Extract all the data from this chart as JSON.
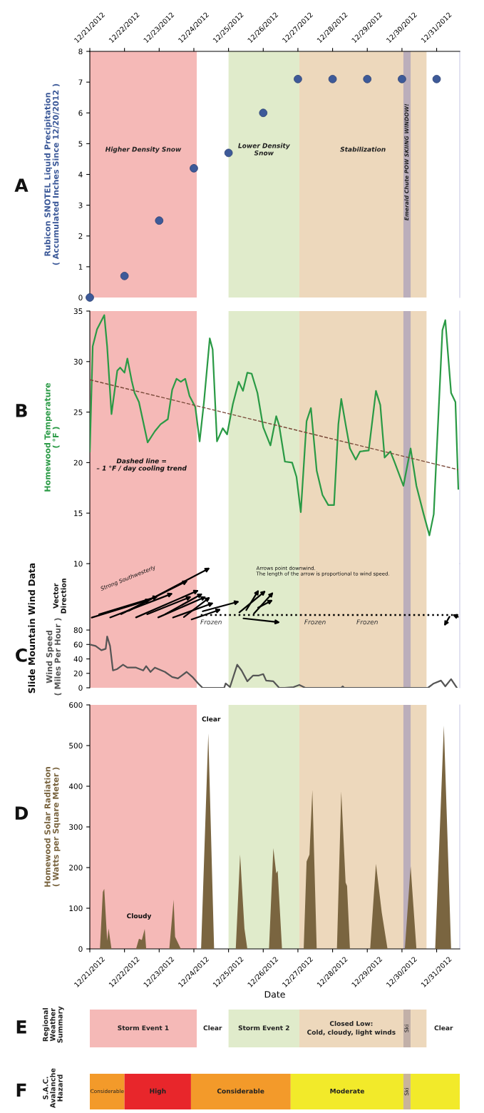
{
  "chart_data": [
    {
      "type": "scatter",
      "ylabel": "Rubicon SNOTEL Liquid Precipitation\n( Accumulated Inches Since 12/20/2012 )",
      "x": [
        "2012-12-21T00:00",
        "2012-12-22T00:00",
        "2012-12-23T00:00",
        "2012-12-24T00:00",
        "2012-12-25T00:00",
        "2012-12-26T00:00",
        "2012-12-27T00:00",
        "2012-12-28T00:00",
        "2012-12-29T00:00",
        "2012-12-30T00:00",
        "2012-12-31T00:00"
      ],
      "series": [
        {
          "color": "#3d5a99",
          "values": [
            0,
            0.7,
            2.5,
            4.2,
            4.7,
            6.0,
            7.1,
            7.1,
            7.1,
            7.1,
            7.1
          ]
        }
      ],
      "marker": "circle",
      "ylim": [
        0,
        8
      ],
      "yticks": [
        0,
        1,
        2,
        3,
        4,
        5,
        6,
        7,
        8
      ],
      "xlim": [
        "2012-12-21T00:00",
        "2012-12-31T16:00"
      ],
      "xticks": [
        {
          "value": "2012-12-21T00:00",
          "label": "12/21/2012"
        },
        {
          "value": "2012-12-22T00:00",
          "label": "12/22/2012"
        },
        {
          "value": "2012-12-23T00:00",
          "label": "12/23/2012"
        },
        {
          "value": "2012-12-24T00:00",
          "label": "12/24/2012"
        },
        {
          "value": "2012-12-25T00:00",
          "label": "12/25/2012"
        },
        {
          "value": "2012-12-26T00:00",
          "label": "12/26/2012"
        },
        {
          "value": "2012-12-27T00:00",
          "label": "12/27/2012"
        },
        {
          "value": "2012-12-28T00:00",
          "label": "12/28/2012"
        },
        {
          "value": "2012-12-29T00:00",
          "label": "12/29/2012"
        },
        {
          "value": "2012-12-30T00:00",
          "label": "12/30/2012"
        },
        {
          "value": "2012-12-31T00:00",
          "label": "12/31/2012"
        }
      ],
      "bands": [
        {
          "axis": "x",
          "from": "2012-12-21T00:00",
          "to": "2012-12-24T02:00",
          "color": "#f5b9b7",
          "label": "Higher Density Snow"
        },
        {
          "axis": "x",
          "from": "2012-12-25T00:00",
          "to": "2012-12-27T01:00",
          "color": "#e0ebcb",
          "label": "Lower Density\nSnow"
        },
        {
          "axis": "x",
          "from": "2012-12-27T01:00",
          "to": "2012-12-30T17:00",
          "color": "#edd8bc",
          "label": "Stabilization"
        },
        {
          "axis": "x",
          "from": "2012-12-30T01:00",
          "to": "2012-12-30T06:00",
          "color": "#bbaebb",
          "label": "Emerald Chute POW SKIING WINDOW!"
        }
      ],
      "annotations": [
        "A"
      ]
    },
    {
      "type": "line",
      "ylabel": "Homewood Temperature\n( °F )",
      "tick_labels": "y",
      "xlim": [
        "2012-12-21T00:00",
        "2012-12-31T16:00"
      ],
      "ylim": [
        10,
        35
      ],
      "yticks": [
        10,
        15,
        20,
        25,
        30,
        35
      ],
      "series": [
        {
          "color": "#2a9a45",
          "line_style": "solid",
          "x": [
            "2012-12-21T00:00",
            "2012-12-21T02:00",
            "2012-12-21T05:00",
            "2012-12-21T10:00",
            "2012-12-21T12:00",
            "2012-12-21T15:00",
            "2012-12-21T19:00",
            "2012-12-21T21:00",
            "2012-12-22T00:00",
            "2012-12-22T02:00",
            "2012-12-22T05:00",
            "2012-12-22T07:00",
            "2012-12-22T10:00",
            "2012-12-22T16:00",
            "2012-12-22T21:00",
            "2012-12-23T01:00",
            "2012-12-23T06:00",
            "2012-12-23T09:00",
            "2012-12-23T12:00",
            "2012-12-23T15:00",
            "2012-12-23T18:00",
            "2012-12-23T21:00",
            "2012-12-24T01:00",
            "2012-12-24T04:00",
            "2012-12-24T07:00",
            "2012-12-24T11:00",
            "2012-12-24T13:00",
            "2012-12-24T16:00",
            "2012-12-24T20:00",
            "2012-12-24T23:00",
            "2012-12-25T03:00",
            "2012-12-25T07:00",
            "2012-12-25T10:00",
            "2012-12-25T13:00",
            "2012-12-25T16:00",
            "2012-12-25T20:00",
            "2012-12-26T00:00",
            "2012-12-26T05:00",
            "2012-12-26T09:00",
            "2012-12-26T11:00",
            "2012-12-26T15:00",
            "2012-12-26T20:00",
            "2012-12-26T23:00",
            "2012-12-27T02:00",
            "2012-12-27T06:00",
            "2012-12-27T09:00",
            "2012-12-27T13:00",
            "2012-12-27T17:00",
            "2012-12-27T21:00",
            "2012-12-28T01:00",
            "2012-12-28T04:00",
            "2012-12-28T06:00",
            "2012-12-28T09:00",
            "2012-12-28T12:00",
            "2012-12-28T16:00",
            "2012-12-28T19:00",
            "2012-12-29T01:00",
            "2012-12-29T06:00",
            "2012-12-29T09:00",
            "2012-12-29T12:00",
            "2012-12-29T16:00",
            "2012-12-29T19:00",
            "2012-12-30T01:00",
            "2012-12-30T06:00",
            "2012-12-30T10:00",
            "2012-12-30T15:00",
            "2012-12-30T19:00",
            "2012-12-30T22:00",
            "2012-12-31T04:00",
            "2012-12-31T06:00",
            "2012-12-31T10:00",
            "2012-12-31T13:00",
            "2012-12-31T15:00"
          ],
          "values": [
            21.1,
            31.5,
            33.2,
            34.6,
            31.5,
            24.8,
            29.1,
            29.4,
            28.9,
            30.3,
            28.1,
            26.9,
            26.0,
            22.0,
            23.1,
            23.8,
            24.3,
            27.2,
            28.3,
            28.0,
            28.3,
            26.6,
            25.5,
            22.1,
            26.0,
            32.3,
            31.2,
            22.1,
            23.4,
            22.8,
            25.8,
            28.0,
            27.1,
            28.9,
            28.8,
            26.9,
            23.5,
            21.7,
            24.6,
            23.7,
            20.1,
            20.0,
            18.6,
            15.1,
            24.1,
            25.4,
            19.2,
            16.8,
            15.8,
            15.8,
            23.8,
            26.3,
            23.8,
            21.4,
            20.3,
            21.1,
            21.2,
            27.1,
            25.7,
            20.5,
            21.1,
            20.0,
            17.7,
            21.4,
            17.7,
            14.9,
            12.8,
            14.9,
            33.1,
            34.1,
            26.9,
            26.0,
            17.4
          ]
        },
        {
          "color": "#7a4a3a",
          "line_style": "dashed",
          "x": [
            "2012-12-21T00:00",
            "2012-12-31T15:00"
          ],
          "values": [
            28.2,
            19.3
          ]
        }
      ],
      "bands": [
        {
          "axis": "x",
          "from": "2012-12-21T00:00",
          "to": "2012-12-24T02:00",
          "color": "#f5b9b7"
        },
        {
          "axis": "x",
          "from": "2012-12-25T00:00",
          "to": "2012-12-27T01:00",
          "color": "#e0ebcb"
        },
        {
          "axis": "x",
          "from": "2012-12-27T01:00",
          "to": "2012-12-30T17:00",
          "color": "#edd8bc"
        },
        {
          "axis": "x",
          "from": "2012-12-30T01:00",
          "to": "2012-12-30T06:00",
          "color": "#bbaebb"
        }
      ],
      "annotations": [
        "B",
        "Dashed line =\n– 1 °F / day cooling trend"
      ]
    },
    {
      "type": "line",
      "ylabel": "Wind Speed\n( Miles Per Hour )",
      "tick_labels": "y",
      "xlim": [
        "2012-12-21T00:00",
        "2012-12-31T16:00"
      ],
      "ylim": [
        0,
        172
      ],
      "yticks": [
        0,
        20,
        40,
        60,
        80
      ],
      "series": [
        {
          "color": "#555555",
          "line_style": "solid",
          "x": [
            "2012-12-21T00:00",
            "2012-12-21T04:00",
            "2012-12-21T08:00",
            "2012-12-21T11:00",
            "2012-12-21T12:00",
            "2012-12-21T14:00",
            "2012-12-21T16:00",
            "2012-12-21T19:00",
            "2012-12-21T23:00",
            "2012-12-22T02:00",
            "2012-12-22T08:00",
            "2012-12-22T13:00",
            "2012-12-22T15:00",
            "2012-12-22T18:00",
            "2012-12-22T21:00",
            "2012-12-23T04:00",
            "2012-12-23T09:00",
            "2012-12-23T13:00",
            "2012-12-23T19:00",
            "2012-12-23T23:00",
            "2012-12-24T03:00",
            "2012-12-24T06:00",
            "2012-12-24T21:00",
            "2012-12-24T22:00",
            "2012-12-25T01:00",
            "2012-12-25T06:00",
            "2012-12-25T09:00",
            "2012-12-25T13:00",
            "2012-12-25T17:00",
            "2012-12-25T21:00",
            "2012-12-26T00:00",
            "2012-12-26T02:00",
            "2012-12-26T07:00",
            "2012-12-26T11:00",
            "2012-12-26T15:00",
            "2012-12-26T21:00",
            "2012-12-27T01:00",
            "2012-12-27T05:00",
            "2012-12-28T06:00",
            "2012-12-28T07:00",
            "2012-12-28T08:00",
            "2012-12-30T18:00",
            "2012-12-30T22:00",
            "2012-12-31T03:00",
            "2012-12-31T06:00",
            "2012-12-31T10:00",
            "2012-12-31T14:00"
          ],
          "values": [
            60,
            58,
            52,
            54,
            71,
            58,
            24,
            26,
            32,
            28,
            28,
            24,
            30,
            22,
            28,
            22,
            15,
            13,
            22,
            15,
            6,
            0,
            0,
            6,
            1,
            32,
            24,
            9,
            17,
            17,
            19,
            10,
            9,
            0,
            0,
            1,
            4,
            0,
            0,
            2,
            0,
            0,
            6,
            10,
            2,
            12,
            0
          ]
        }
      ],
      "bands": [
        {
          "axis": "x",
          "from": "2012-12-21T00:00",
          "to": "2012-12-24T02:00",
          "color": "#f5b9b7"
        },
        {
          "axis": "x",
          "from": "2012-12-25T00:00",
          "to": "2012-12-27T01:00",
          "color": "#e0ebcb"
        },
        {
          "axis": "x",
          "from": "2012-12-27T01:00",
          "to": "2012-12-30T17:00",
          "color": "#edd8bc"
        },
        {
          "axis": "x",
          "from": "2012-12-30T01:00",
          "to": "2012-12-30T06:00",
          "color": "#bbaebb"
        }
      ],
      "annotations": [
        "C",
        "Slide Mountain Wind Data",
        "Vector\nDirection",
        "Strong Southwesterly",
        "Arrows point downwind.\nThe length of the arrow is proportional to wind speed.",
        "Frozen",
        "Frozen",
        "Frozen"
      ]
    },
    {
      "type": "area",
      "ylabel": "Homewood Solar Radiation\n( Watts per Square Meter )",
      "xlabel": "Date",
      "xlim": [
        "2012-12-21T00:00",
        "2012-12-31T16:00"
      ],
      "ylim": [
        0,
        600
      ],
      "yticks": [
        0,
        100,
        200,
        300,
        400,
        500,
        600
      ],
      "xticks": [
        {
          "value": "2012-12-21T00:00",
          "label": "12/21/2012"
        },
        {
          "value": "2012-12-22T00:00",
          "label": "12/22/2012"
        },
        {
          "value": "2012-12-23T00:00",
          "label": "12/23/2012"
        },
        {
          "value": "2012-12-24T00:00",
          "label": "12/24/2012"
        },
        {
          "value": "2012-12-25T00:00",
          "label": "12/25/2012"
        },
        {
          "value": "2012-12-26T00:00",
          "label": "12/26/2012"
        },
        {
          "value": "2012-12-27T00:00",
          "label": "12/27/2012"
        },
        {
          "value": "2012-12-28T00:00",
          "label": "12/28/2012"
        },
        {
          "value": "2012-12-29T00:00",
          "label": "12/29/2012"
        },
        {
          "value": "2012-12-30T00:00",
          "label": "12/30/2012"
        },
        {
          "value": "2012-12-31T00:00",
          "label": "12/31/2012"
        }
      ],
      "series": [
        {
          "color": "#7a6540",
          "x": [
            "2012-12-21T07:00",
            "2012-12-21T09:00",
            "2012-12-21T10:00",
            "2012-12-21T12:00",
            "2012-12-21T13:00",
            "2012-12-21T15:00",
            "2012-12-22T08:00",
            "2012-12-22T10:00",
            "2012-12-22T12:00",
            "2012-12-22T14:00",
            "2012-12-22T15:00",
            "2012-12-23T07:00",
            "2012-12-23T10:00",
            "2012-12-23T11:00",
            "2012-12-23T15:00",
            "2012-12-24T05:00",
            "2012-12-24T10:00",
            "2012-12-24T14:00",
            "2012-12-25T05:00",
            "2012-12-25T08:00",
            "2012-12-25T11:00",
            "2012-12-25T13:00",
            "2012-12-26T04:00",
            "2012-12-26T07:00",
            "2012-12-26T09:00",
            "2012-12-26T10:00",
            "2012-12-26T13:00",
            "2012-12-27T04:00",
            "2012-12-27T06:00",
            "2012-12-27T08:00",
            "2012-12-27T10:00",
            "2012-12-27T13:00",
            "2012-12-28T03:00",
            "2012-12-28T06:00",
            "2012-12-28T09:00",
            "2012-12-28T10:00",
            "2012-12-28T12:00",
            "2012-12-29T02:00",
            "2012-12-29T04:00",
            "2012-12-29T06:00",
            "2012-12-29T10:00",
            "2012-12-29T14:00",
            "2012-12-30T02:00",
            "2012-12-30T06:00",
            "2012-12-30T10:00",
            "2012-12-30T23:00",
            "2012-12-31T05:00",
            "2012-12-31T10:00"
          ],
          "values": [
            0,
            140,
            148,
            20,
            50,
            0,
            0,
            25,
            22,
            49,
            0,
            0,
            121,
            30,
            0,
            0,
            530,
            0,
            0,
            232,
            50,
            0,
            0,
            248,
            186,
            192,
            0,
            0,
            215,
            232,
            391,
            0,
            0,
            387,
            163,
            155,
            0,
            0,
            105,
            209,
            90,
            0,
            0,
            203,
            0,
            0,
            549,
            0
          ]
        }
      ],
      "bands": [
        {
          "axis": "x",
          "from": "2012-12-21T00:00",
          "to": "2012-12-24T02:00",
          "color": "#f5b9b7"
        },
        {
          "axis": "x",
          "from": "2012-12-25T00:00",
          "to": "2012-12-27T01:00",
          "color": "#e0ebcb"
        },
        {
          "axis": "x",
          "from": "2012-12-27T01:00",
          "to": "2012-12-30T17:00",
          "color": "#edd8bc"
        },
        {
          "axis": "x",
          "from": "2012-12-30T01:00",
          "to": "2012-12-30T06:00",
          "color": "#bbaebb"
        }
      ],
      "annotations": [
        "D",
        "Cloudy",
        "Clear"
      ]
    },
    {
      "type": "other",
      "ylabel": "Regional\nWeather\nSummary",
      "annotations": [
        "E",
        "Storm Event 1",
        "Clear",
        "Storm Event 2",
        "Closed Low:\nCold, cloudy, light winds",
        "Ski",
        "Clear"
      ]
    },
    {
      "type": "other",
      "ylabel": "S.A.C.\nAvalanche\nHazard",
      "annotations": [
        "F",
        "Considerable",
        "High",
        "Considerable",
        "Moderate",
        "Ski"
      ]
    }
  ]
}
